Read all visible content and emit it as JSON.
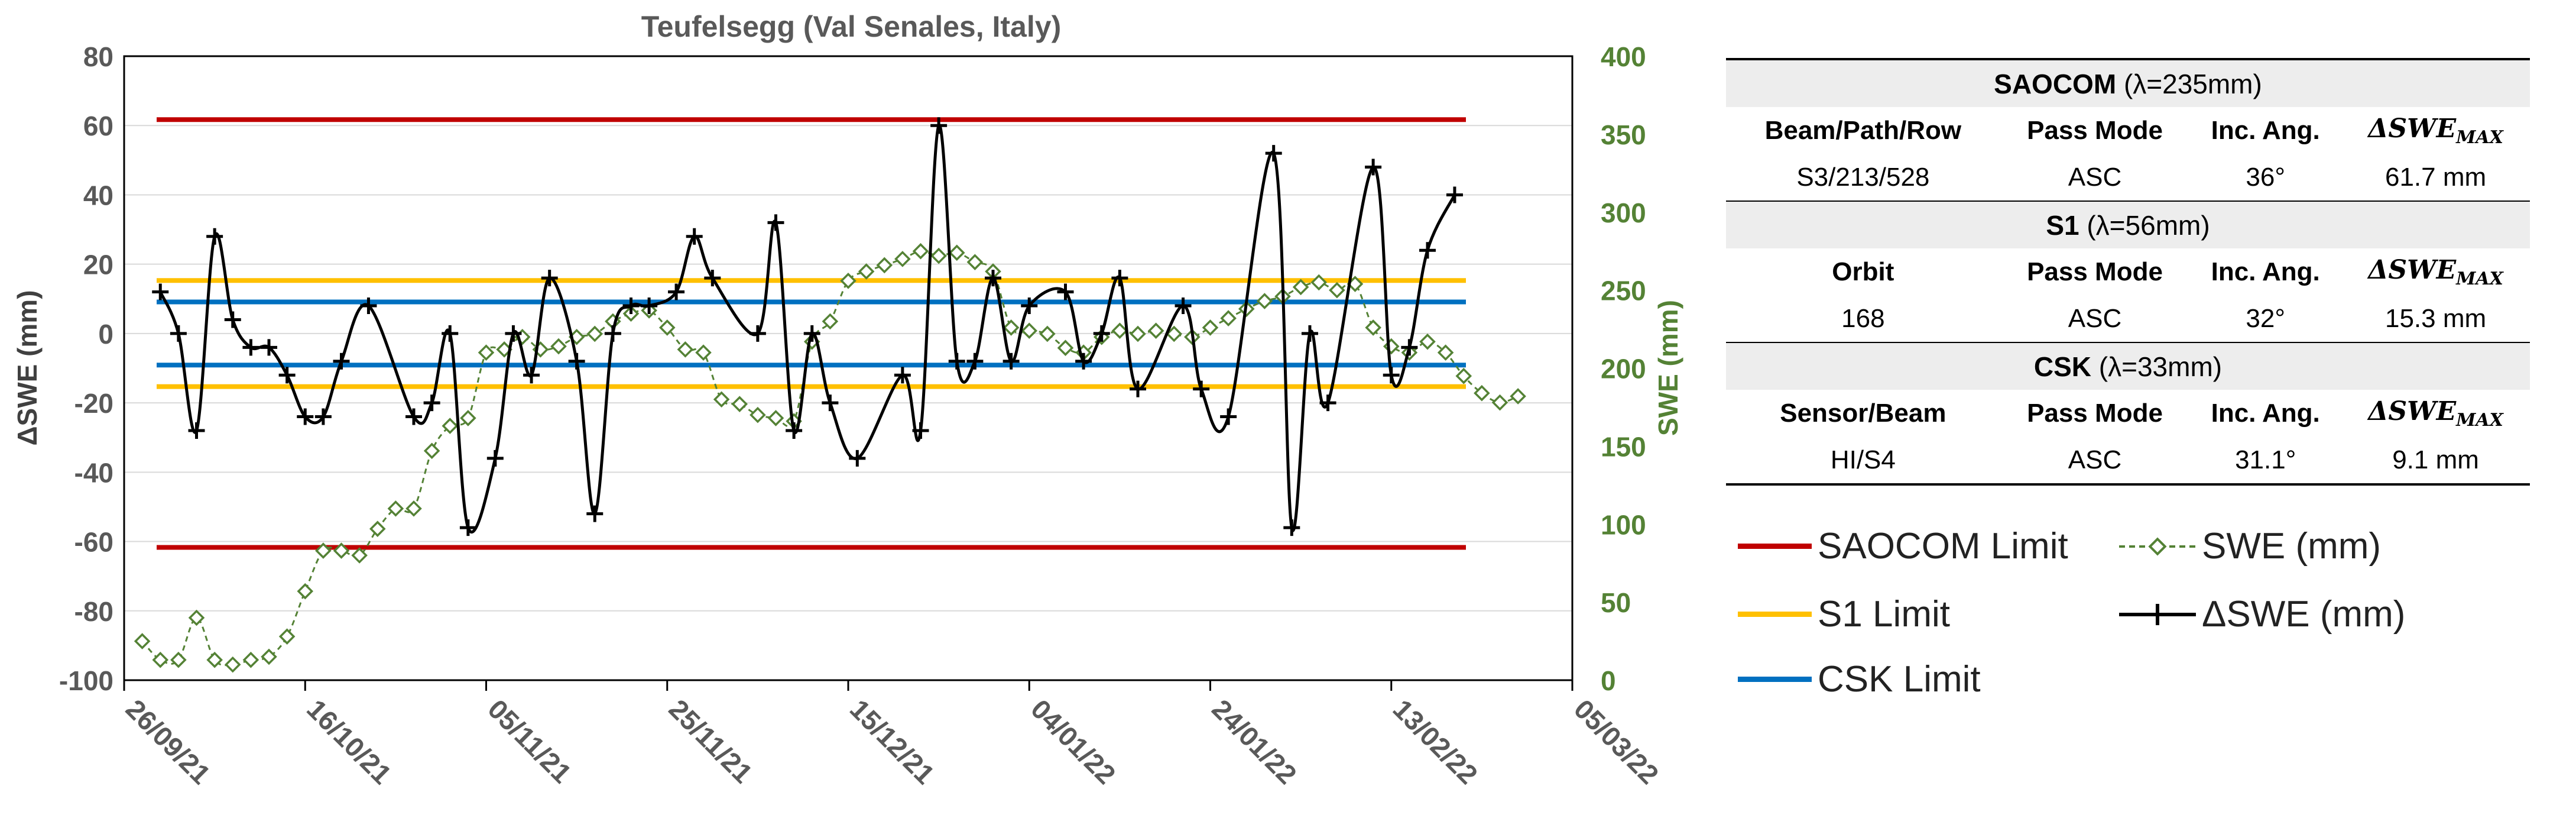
{
  "chart_data": {
    "type": "line",
    "title": "Teufelsegg (Val Senales, Italy)",
    "ylabel": "ΔSWE (mm)",
    "y2label": "SWE (mm)",
    "ylim": [
      -100,
      80
    ],
    "y2lim": [
      0,
      400
    ],
    "xlim": [
      "26/09/21",
      "05/03/22"
    ],
    "yticks": [
      "80",
      "60",
      "40",
      "20",
      "0",
      "-20",
      "-40",
      "-60",
      "-80",
      "-100"
    ],
    "y2ticks": [
      "400",
      "350",
      "300",
      "250",
      "200",
      "150",
      "100",
      "50",
      "0"
    ],
    "xticks": [
      "26/09/21",
      "16/10/21",
      "05/11/21",
      "25/11/21",
      "15/12/21",
      "04/01/22",
      "24/01/22",
      "13/02/22",
      "05/03/22"
    ],
    "grid": true,
    "limits": [
      {
        "name": "SAOCOM Limit",
        "value": 61.7,
        "color": "#c00000"
      },
      {
        "name": "S1 Limit",
        "value": 15.3,
        "color": "#ffc000"
      },
      {
        "name": "CSK Limit",
        "value": 9.1,
        "color": "#0070c0"
      }
    ],
    "series": [
      {
        "name": "ΔSWE (mm)",
        "axis": "left",
        "color": "#000000",
        "marker": "plus",
        "x": [
          "2021-09-30",
          "2021-10-02",
          "2021-10-04",
          "2021-10-06",
          "2021-10-08",
          "2021-10-10",
          "2021-10-12",
          "2021-10-14",
          "2021-10-16",
          "2021-10-18",
          "2021-10-20",
          "2021-10-23",
          "2021-10-28",
          "2021-10-30",
          "2021-11-01",
          "2021-11-03",
          "2021-11-06",
          "2021-11-08",
          "2021-11-10",
          "2021-11-12",
          "2021-11-15",
          "2021-11-17",
          "2021-11-19",
          "2021-11-21",
          "2021-11-23",
          "2021-11-26",
          "2021-11-28",
          "2021-11-30",
          "2021-12-05",
          "2021-12-07",
          "2021-12-09",
          "2021-12-11",
          "2021-12-13",
          "2021-12-16",
          "2021-12-21",
          "2021-12-23",
          "2021-12-25",
          "2021-12-27",
          "2021-12-29",
          "2021-12-31",
          "2022-01-02",
          "2022-01-04",
          "2022-01-08",
          "2022-01-10",
          "2022-01-12",
          "2022-01-14",
          "2022-01-16",
          "2022-01-21",
          "2022-01-23",
          "2022-01-26",
          "2022-01-31",
          "2022-02-02",
          "2022-02-04",
          "2022-02-06",
          "2022-02-11",
          "2022-02-13",
          "2022-02-15",
          "2022-02-17",
          "2022-02-20"
        ],
        "values": [
          12,
          0,
          -28,
          28,
          4,
          -4,
          -4,
          -12,
          -24,
          -24,
          -8,
          8,
          -24,
          -20,
          0,
          -56,
          -36,
          0,
          -12,
          16,
          -8,
          -52,
          0,
          8,
          8,
          12,
          28,
          16,
          0,
          32,
          -28,
          0,
          -20,
          -36,
          -12,
          -28,
          60,
          -8,
          -8,
          16,
          -8,
          8,
          12,
          -8,
          0,
          16,
          -16,
          8,
          -16,
          -24,
          52,
          -56,
          0,
          -20,
          48,
          -12,
          -4,
          24,
          40
        ]
      },
      {
        "name": "SWE (mm)",
        "axis": "right",
        "color": "#548235",
        "marker": "diamond",
        "x": [
          "2021-09-28",
          "2021-09-30",
          "2021-10-02",
          "2021-10-04",
          "2021-10-06",
          "2021-10-08",
          "2021-10-10",
          "2021-10-12",
          "2021-10-14",
          "2021-10-16",
          "2021-10-18",
          "2021-10-20",
          "2021-10-22",
          "2021-10-24",
          "2021-10-26",
          "2021-10-28",
          "2021-10-30",
          "2021-11-01",
          "2021-11-03",
          "2021-11-05",
          "2021-11-07",
          "2021-11-09",
          "2021-11-11",
          "2021-11-13",
          "2021-11-15",
          "2021-11-17",
          "2021-11-19",
          "2021-11-21",
          "2021-11-23",
          "2021-11-25",
          "2021-11-27",
          "2021-11-29",
          "2021-12-01",
          "2021-12-03",
          "2021-12-05",
          "2021-12-07",
          "2021-12-09",
          "2021-12-11",
          "2021-12-13",
          "2021-12-15",
          "2021-12-17",
          "2021-12-19",
          "2021-12-21",
          "2021-12-23",
          "2021-12-25",
          "2021-12-27",
          "2021-12-29",
          "2021-12-31",
          "2022-01-02",
          "2022-01-04",
          "2022-01-06",
          "2022-01-08",
          "2022-01-10",
          "2022-01-12",
          "2022-01-14",
          "2022-01-16",
          "2022-01-18",
          "2022-01-20",
          "2022-01-22",
          "2022-01-24",
          "2022-01-26",
          "2022-01-28",
          "2022-01-30",
          "2022-02-01",
          "2022-02-03",
          "2022-02-05",
          "2022-02-07",
          "2022-02-09",
          "2022-02-11",
          "2022-02-13",
          "2022-02-15",
          "2022-02-17",
          "2022-02-19",
          "2022-02-21",
          "2022-02-23",
          "2022-02-25",
          "2022-02-27"
        ],
        "values": [
          25,
          13,
          13,
          40,
          13,
          10,
          13,
          15,
          28,
          57,
          83,
          83,
          80,
          97,
          110,
          110,
          147,
          163,
          168,
          210,
          212,
          220,
          212,
          214,
          220,
          222,
          230,
          235,
          237,
          226,
          212,
          210,
          180,
          177,
          170,
          168,
          166,
          217,
          230,
          256,
          262,
          266,
          270,
          275,
          272,
          274,
          268,
          262,
          226,
          224,
          222,
          213,
          210,
          220,
          224,
          222,
          224,
          222,
          220,
          226,
          232,
          238,
          243,
          246,
          252,
          255,
          250,
          254,
          226,
          214,
          210,
          217,
          210,
          195,
          184,
          178,
          182
        ]
      }
    ]
  },
  "table": {
    "sections": [
      {
        "name": "SAOCOM",
        "wavelength": "(λ=235mm)",
        "headers": [
          "Beam/Path/Row",
          "Pass Mode",
          "Inc. Ang."
        ],
        "max_label": "ΔSWE",
        "max_sub": "MAX",
        "values": [
          "S3/213/528",
          "ASC",
          "36°",
          "61.7 mm"
        ]
      },
      {
        "name": "S1",
        "wavelength": "(λ=56mm)",
        "headers": [
          "Orbit",
          "Pass Mode",
          "Inc. Ang."
        ],
        "max_label": "ΔSWE",
        "max_sub": "MAX",
        "values": [
          "168",
          "ASC",
          "32°",
          "15.3 mm"
        ]
      },
      {
        "name": "CSK",
        "wavelength": "(λ=33mm)",
        "headers": [
          "Sensor/Beam",
          "Pass Mode",
          "Inc. Ang."
        ],
        "max_label": "ΔSWE",
        "max_sub": "MAX",
        "values": [
          "HI/S4",
          "ASC",
          "31.1°",
          "9.1 mm"
        ]
      }
    ]
  },
  "legend": {
    "saocom": "SAOCOM Limit",
    "s1": "S1 Limit",
    "csk": "CSK Limit",
    "swe": "SWE (mm)",
    "dswe": "ΔSWE (mm)"
  }
}
